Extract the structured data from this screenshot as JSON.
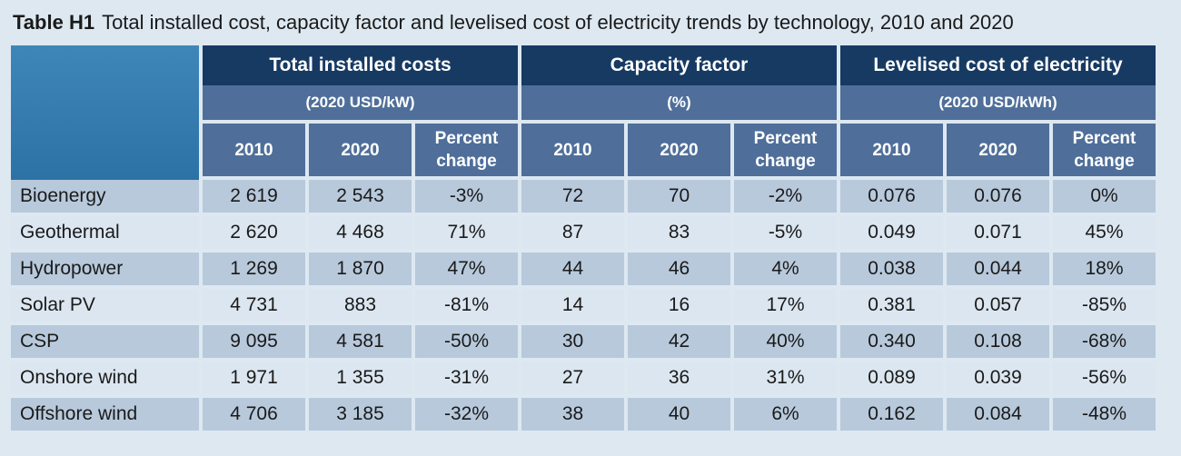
{
  "title": {
    "label": "Table H1",
    "text": "Total installed cost, capacity factor and levelised cost of electricity trends by technology, 2010 and 2020"
  },
  "groups": [
    {
      "name": "Total installed costs",
      "unit": "(2020 USD/kW)"
    },
    {
      "name": "Capacity factor",
      "unit": "(%)"
    },
    {
      "name": "Levelised cost of electricity",
      "unit": "(2020 USD/kWh)"
    }
  ],
  "subheaders": {
    "y2010": "2010",
    "y2020": "2020",
    "change_line1": "Percent",
    "change_line2": "change"
  },
  "rows": [
    {
      "tech": "Bioenergy",
      "cost": [
        "2 619",
        "2 543",
        "-3%"
      ],
      "cf": [
        "72",
        "70",
        "-2%"
      ],
      "lcoe": [
        "0.076",
        "0.076",
        "0%"
      ]
    },
    {
      "tech": "Geothermal",
      "cost": [
        "2 620",
        "4 468",
        "71%"
      ],
      "cf": [
        "87",
        "83",
        "-5%"
      ],
      "lcoe": [
        "0.049",
        "0.071",
        "45%"
      ]
    },
    {
      "tech": "Hydropower",
      "cost": [
        "1 269",
        "1 870",
        "47%"
      ],
      "cf": [
        "44",
        "46",
        "4%"
      ],
      "lcoe": [
        "0.038",
        "0.044",
        "18%"
      ]
    },
    {
      "tech": "Solar PV",
      "cost": [
        "4 731",
        "883",
        "-81%"
      ],
      "cf": [
        "14",
        "16",
        "17%"
      ],
      "lcoe": [
        "0.381",
        "0.057",
        "-85%"
      ]
    },
    {
      "tech": "CSP",
      "cost": [
        "9 095",
        "4 581",
        "-50%"
      ],
      "cf": [
        "30",
        "42",
        "40%"
      ],
      "lcoe": [
        "0.340",
        "0.108",
        "-68%"
      ]
    },
    {
      "tech": "Onshore wind",
      "cost": [
        "1 971",
        "1 355",
        "-31%"
      ],
      "cf": [
        "27",
        "36",
        "31%"
      ],
      "lcoe": [
        "0.089",
        "0.039",
        "-56%"
      ]
    },
    {
      "tech": "Offshore wind",
      "cost": [
        "4 706",
        "3 185",
        "-32%"
      ],
      "cf": [
        "38",
        "40",
        "6%"
      ],
      "lcoe": [
        "0.162",
        "0.084",
        "-48%"
      ]
    }
  ]
}
